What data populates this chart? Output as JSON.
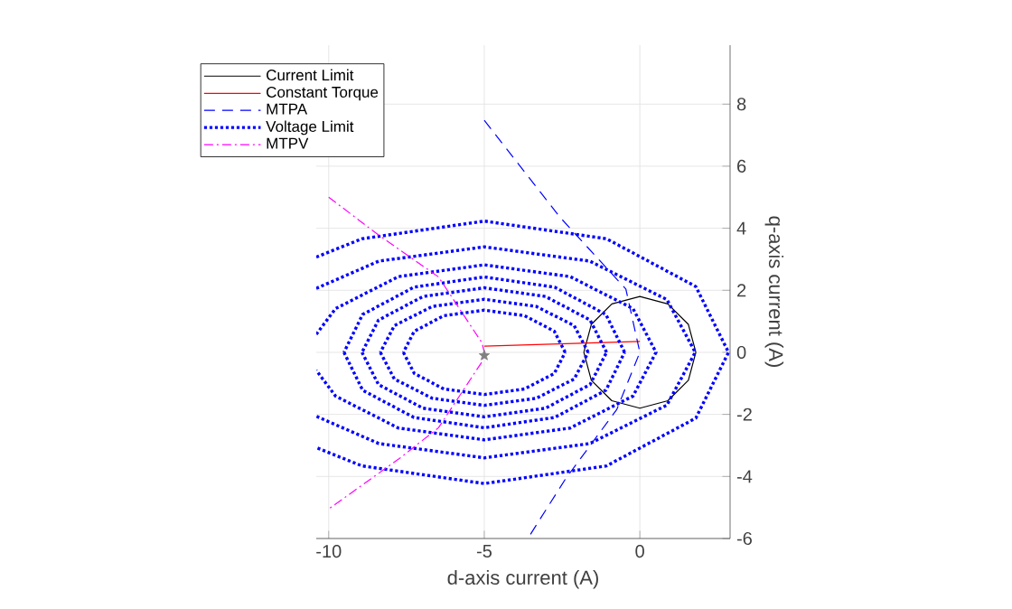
{
  "chart_data": {
    "type": "line",
    "xlabel": "d-axis current (A)",
    "ylabel": "q-axis current (A)",
    "xlim": [
      -10.4,
      2.9
    ],
    "ylim": [
      -6,
      9.9
    ],
    "xticks": [
      -10,
      -5,
      0
    ],
    "yticks": [
      -6,
      -4,
      -2,
      0,
      2,
      4,
      6,
      8
    ],
    "grid": true,
    "legend": "top left",
    "series": [
      {
        "name": "Current Limit",
        "color": "#000000",
        "line_style": "solid",
        "x": [
          1.8,
          1.56,
          0.9,
          0,
          -0.9,
          -1.56,
          -1.8
        ],
        "values": [
          0,
          0.9,
          1.56,
          1.8,
          1.56,
          0.9,
          0
        ]
      },
      {
        "color": "#000000",
        "line_style": "solid",
        "x": [
          -1.8,
          -1.56,
          -0.9,
          0,
          0.9,
          1.56,
          1.8
        ],
        "values": [
          0,
          -0.9,
          -1.56,
          -1.8,
          -1.56,
          -0.9,
          0
        ]
      },
      {
        "name": "Constant Torque",
        "color": "#ff0000",
        "line_style": "solid",
        "x": [
          -5,
          0
        ],
        "values": [
          0.2,
          0.35
        ]
      },
      {
        "name": "MTPA",
        "color": "#0000ff",
        "line_style": "dashed",
        "x": [
          -5,
          -2.58,
          -0.45,
          0,
          -0.74,
          -2.39,
          -3.6
        ],
        "values": [
          7.48,
          4.37,
          2.04,
          0,
          -1.84,
          -4.08,
          -6
        ]
      },
      {
        "name": "Voltage Limit",
        "color": "#0000ff",
        "line_style": "dotted",
        "x": [
          -2.4,
          -2.75,
          -3.7,
          -5,
          -6.3,
          -7.25,
          -7.6
        ],
        "values": [
          0,
          0.68,
          1.18,
          1.36,
          1.18,
          0.68,
          0
        ]
      },
      {
        "color": "#0000ff",
        "line_style": "dotted",
        "x": [
          -7.6,
          -7.25,
          -6.3,
          -5,
          -3.7,
          -2.75,
          -2.4
        ],
        "values": [
          0,
          -0.68,
          -1.18,
          -1.36,
          -1.18,
          -0.68,
          0
        ]
      },
      {
        "color": "#0000ff",
        "line_style": "dotted",
        "x": [
          -1.66,
          -2.11,
          -3.33,
          -5,
          -6.67,
          -7.89,
          -8.34
        ],
        "values": [
          0,
          0.86,
          1.48,
          1.71,
          1.48,
          0.86,
          0
        ]
      },
      {
        "color": "#0000ff",
        "line_style": "dotted",
        "x": [
          -8.34,
          -7.89,
          -6.67,
          -5,
          -3.33,
          -2.11,
          -1.66
        ],
        "values": [
          0,
          -0.86,
          -1.48,
          -1.71,
          -1.48,
          -0.86,
          0
        ]
      },
      {
        "color": "#0000ff",
        "line_style": "dotted",
        "x": [
          -1.07,
          -1.6,
          -3.03,
          -5,
          -6.97,
          -8.4,
          -8.93
        ],
        "values": [
          0,
          1.04,
          1.8,
          2.08,
          1.8,
          1.04,
          0
        ]
      },
      {
        "color": "#0000ff",
        "line_style": "dotted",
        "x": [
          -8.93,
          -8.4,
          -6.97,
          -5,
          -3.03,
          -1.6,
          -1.07
        ],
        "values": [
          0,
          -1.04,
          -1.8,
          -2.08,
          -1.8,
          -1.04,
          0
        ]
      },
      {
        "color": "#0000ff",
        "line_style": "dotted",
        "x": [
          -0.49,
          -1.09,
          -2.74,
          -5,
          -7.26,
          -8.91,
          -9.51
        ],
        "values": [
          0,
          1.22,
          2.1,
          2.43,
          2.1,
          1.22,
          0
        ]
      },
      {
        "color": "#0000ff",
        "line_style": "dotted",
        "x": [
          -9.51,
          -8.91,
          -7.26,
          -5,
          -2.74,
          -1.09,
          -0.49
        ],
        "values": [
          0,
          -1.22,
          -2.1,
          -2.43,
          -2.1,
          -1.22,
          0
        ]
      },
      {
        "color": "#0000ff",
        "line_style": "dotted",
        "x": [
          -10.4,
          -9.78,
          -7.76,
          -5,
          -2.24,
          -0.22,
          0.52,
          -0.22,
          -2.24,
          -5,
          -7.76,
          -9.78,
          -10.4
        ],
        "values": [
          0.58,
          1.41,
          2.44,
          2.82,
          2.44,
          1.41,
          0,
          -1.41,
          -2.44,
          -2.82,
          -2.44,
          -1.41,
          -0.58
        ]
      },
      {
        "color": "#0000ff",
        "line_style": "dotted",
        "x": [
          -10.4,
          -8.39,
          -5,
          -1.61,
          0.87,
          1.78,
          0.87,
          -1.61,
          -5,
          -8.39,
          -10.4
        ],
        "values": [
          2.06,
          2.94,
          3.4,
          2.94,
          1.7,
          0,
          -1.7,
          -2.94,
          -3.4,
          -2.94,
          -2.06
        ]
      },
      {
        "color": "#0000ff",
        "line_style": "dotted",
        "x": [
          -10.4,
          -8.93,
          -5,
          -1.07,
          1.8,
          2.85,
          1.8,
          -1.07,
          -5,
          -8.93,
          -10.4
        ],
        "values": [
          3.07,
          3.66,
          4.23,
          3.66,
          2.12,
          0,
          -2.12,
          -3.66,
          -4.23,
          -3.66,
          -3.07
        ]
      },
      {
        "name": "MTPV",
        "color": "#ff00ff",
        "line_style": "dashdot",
        "x": [
          -10,
          -8.41,
          -6.47,
          -5.07,
          -5,
          -5.07,
          -6.47,
          -7.7,
          -10
        ],
        "values": [
          5,
          3.79,
          2.43,
          0.3,
          0,
          -0.3,
          -2.43,
          -3.4,
          -5.05
        ]
      },
      {
        "type": "scatter",
        "color": "#808080",
        "marker": "star",
        "x": [
          -5
        ],
        "values": [
          -0.1
        ]
      }
    ]
  }
}
